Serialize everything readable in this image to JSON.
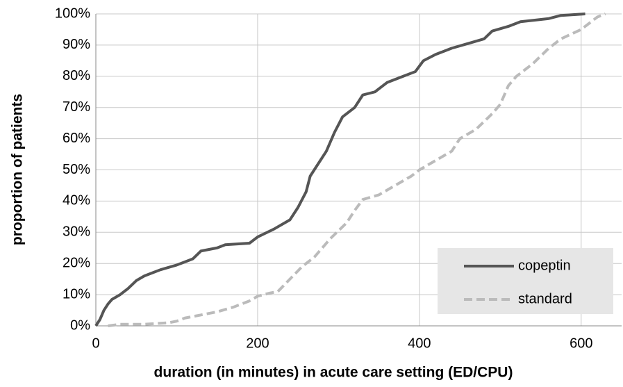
{
  "chart_data": {
    "type": "line",
    "x_label": "duration (in minutes) in acute care setting (ED/CPU)",
    "y_label": "proportion of patients",
    "xlim": [
      0,
      650
    ],
    "xticks": [
      0,
      200,
      400,
      600
    ],
    "ylim": [
      0,
      100
    ],
    "yticks": [
      {
        "value": 0,
        "label": "0%"
      },
      {
        "value": 10,
        "label": "10%"
      },
      {
        "value": 20,
        "label": "20%"
      },
      {
        "value": 30,
        "label": "30%"
      },
      {
        "value": 40,
        "label": "40%"
      },
      {
        "value": 50,
        "label": "50%"
      },
      {
        "value": 60,
        "label": "60%"
      },
      {
        "value": 70,
        "label": "70%"
      },
      {
        "value": 80,
        "label": "80%"
      },
      {
        "value": 90,
        "label": "90%"
      },
      {
        "value": 100,
        "label": "100%"
      }
    ],
    "grid": true,
    "legend": "lower right",
    "series": [
      {
        "name": "copeptin",
        "color": "#555555",
        "dash": false,
        "x": [
          0,
          5,
          10,
          15,
          20,
          30,
          40,
          50,
          60,
          70,
          80,
          100,
          120,
          130,
          150,
          160,
          190,
          200,
          220,
          240,
          250,
          260,
          265,
          275,
          285,
          295,
          305,
          320,
          330,
          345,
          360,
          380,
          395,
          405,
          420,
          440,
          460,
          480,
          490,
          510,
          525,
          560,
          575,
          605
        ],
        "values": [
          0,
          2,
          5,
          7,
          8.5,
          10,
          12,
          14.5,
          16,
          17,
          18,
          19.5,
          21.5,
          24,
          25,
          26,
          26.5,
          28.5,
          31,
          34,
          38,
          43,
          48,
          52,
          56,
          62,
          67,
          70,
          74,
          75,
          78,
          80,
          81.5,
          85,
          87,
          89,
          90.5,
          92,
          94.5,
          96,
          97.5,
          98.5,
          99.5,
          100
        ]
      },
      {
        "name": "standard",
        "color": "#bbbbbb",
        "dash": true,
        "x": [
          15,
          30,
          60,
          90,
          100,
          110,
          130,
          150,
          170,
          190,
          200,
          215,
          225,
          240,
          255,
          270,
          290,
          310,
          320,
          330,
          350,
          370,
          390,
          400,
          420,
          440,
          450,
          470,
          490,
          500,
          510,
          520,
          540,
          560,
          575,
          600,
          620,
          630
        ],
        "values": [
          0,
          0.5,
          0.5,
          1,
          1.5,
          2.5,
          3.5,
          4.5,
          6,
          8,
          9.5,
          10.5,
          11,
          15,
          19,
          22,
          28,
          33,
          37,
          40.5,
          42,
          45,
          48,
          50,
          53,
          56,
          60,
          63,
          68,
          71,
          77,
          80,
          84,
          89,
          92,
          95,
          99,
          100
        ]
      }
    ]
  }
}
